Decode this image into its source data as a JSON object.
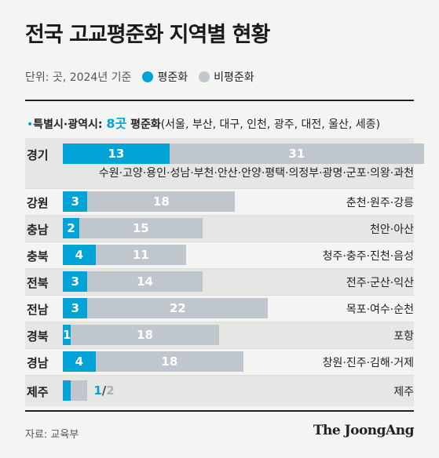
{
  "header": {
    "title": "전국 고교평준화 지역별 현황",
    "unit": "단위: 곳, 2024년 기준"
  },
  "legend": [
    {
      "label": "평준화",
      "color": "#00a3d6"
    },
    {
      "label": "비평준화",
      "color": "#c0c7cc"
    }
  ],
  "subheading": {
    "bullet": "•",
    "prefix": "특별시·광역시: ",
    "count": "8곳",
    "label": " 평준화",
    "detail": "(서울, 부산, 대구, 인천, 광주, 대전, 울산, 세종)"
  },
  "chart_data": {
    "type": "bar",
    "orientation": "horizontal",
    "stacked": true,
    "categories": [
      "경기",
      "강원",
      "충남",
      "충북",
      "전북",
      "전남",
      "경북",
      "경남",
      "제주"
    ],
    "series": [
      {
        "name": "평준화",
        "color": "#00a3d6",
        "values": [
          13,
          3,
          2,
          4,
          3,
          3,
          1,
          4,
          1
        ]
      },
      {
        "name": "비평준화",
        "color": "#c0c7cc",
        "values": [
          31,
          18,
          15,
          11,
          14,
          22,
          18,
          18,
          2
        ]
      }
    ],
    "cities": [
      "수원·고양·용인·성남·부천·안산·안양·평택·의정부·광명·군포·의왕·과천",
      "춘천·원주·강릉",
      "천안·아산",
      "청주·충주·진천·음성",
      "전주·군산·익산",
      "목포·여수·순천",
      "포항",
      "창원·진주·김해·거제",
      "제주"
    ],
    "jeju_label": {
      "a": "1",
      "sep": "/",
      "b": "2"
    }
  },
  "footer": {
    "source": "자료: 교육부",
    "brand": "The JoongAng"
  }
}
